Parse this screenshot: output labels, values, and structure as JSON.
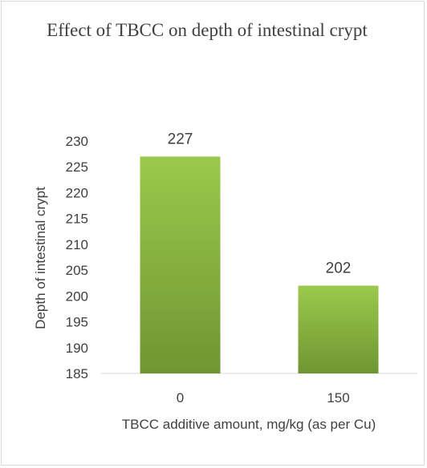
{
  "chart_data": {
    "type": "bar",
    "title": "Effect of TBCC on depth of intestinal crypt",
    "xlabel": "TBCC additive amount, mg/kg (as per Cu)",
    "ylabel": "Depth of intestinal crypt",
    "categories": [
      "0",
      "150"
    ],
    "values": [
      227,
      202
    ],
    "data_labels": [
      "227",
      "202"
    ],
    "ylim": [
      185,
      230
    ],
    "yticks": [
      "185",
      "190",
      "195",
      "200",
      "205",
      "210",
      "215",
      "220",
      "225",
      "230"
    ],
    "grid": false,
    "legend": "none",
    "colors": {
      "bar_top": "#9bc94c",
      "bar_bottom": "#6e9632",
      "text": "#404040",
      "axis": "#d9d9d9"
    }
  }
}
